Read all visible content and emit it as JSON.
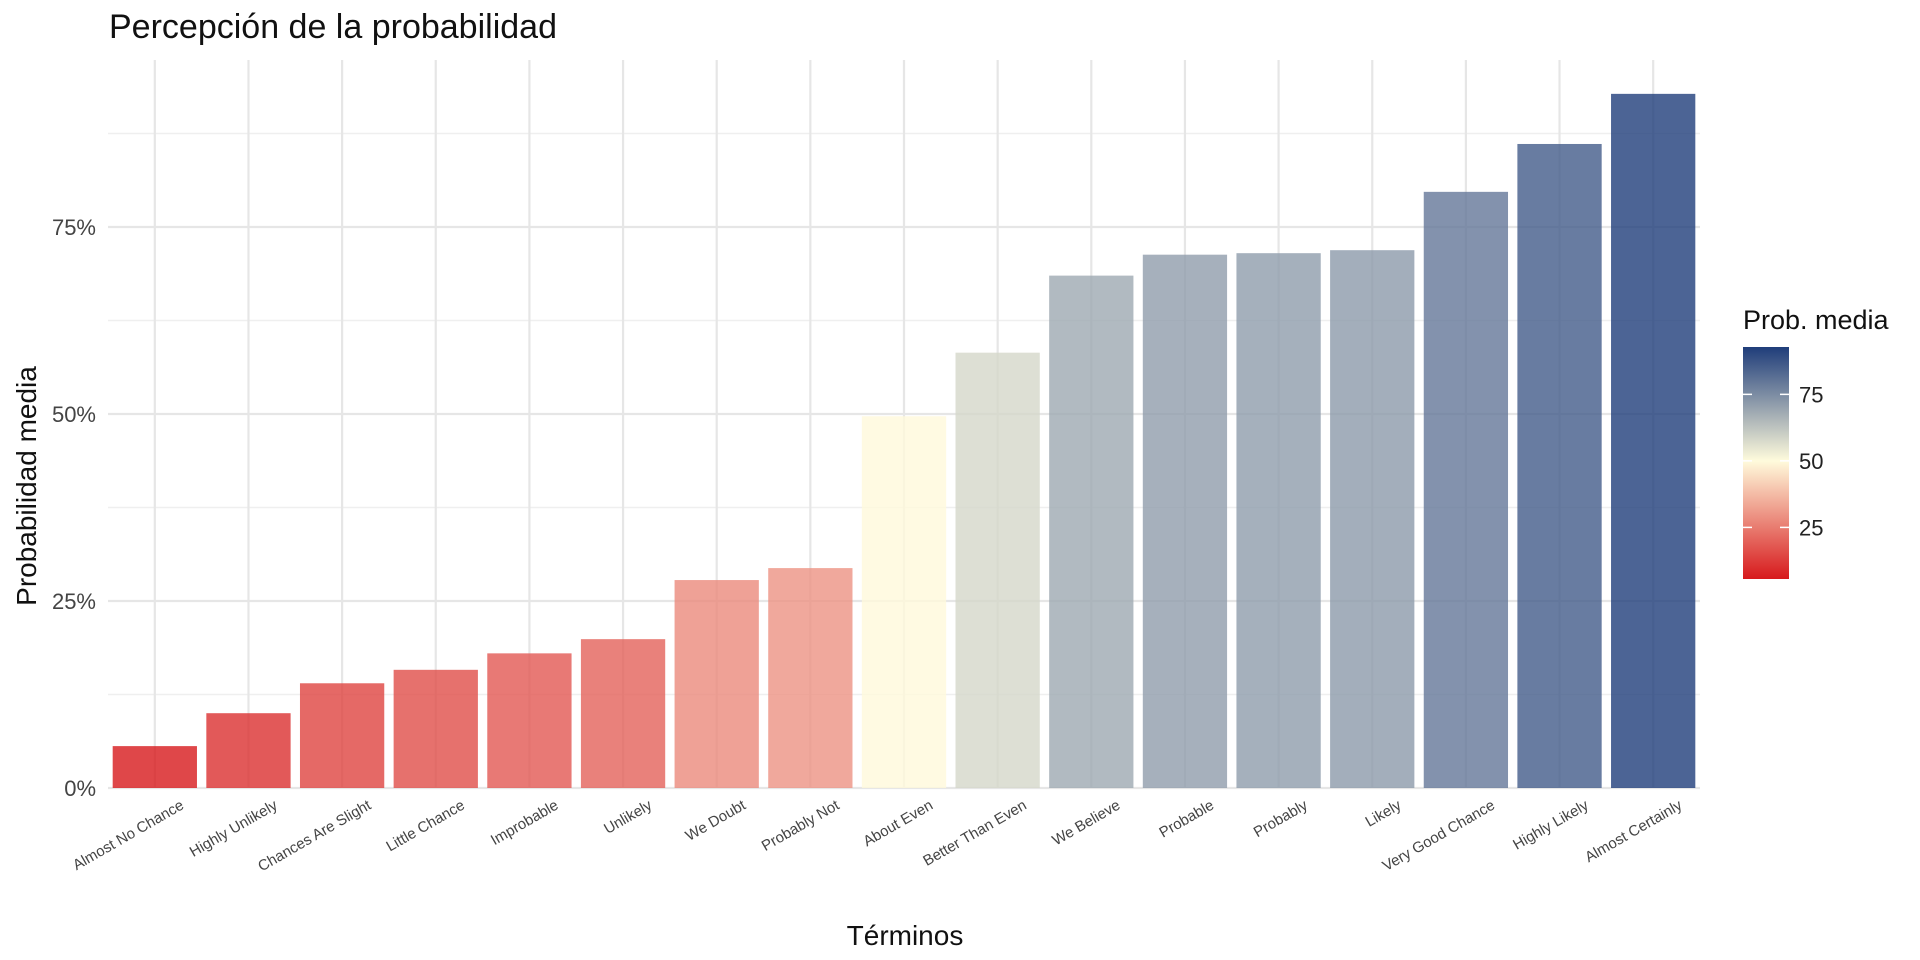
{
  "chart_data": {
    "type": "bar",
    "title": "Percepción de la probabilidad",
    "xlabel": "Términos",
    "ylabel": "Probabilidad media",
    "categories": [
      "Almost No Chance",
      "Highly Unlikely",
      "Chances Are Slight",
      "Little Chance",
      "Improbable",
      "Unlikely",
      "We Doubt",
      "Probably Not",
      "About Even",
      "Better Than Even",
      "We Believe",
      "Probable",
      "Probably",
      "Likely",
      "Very Good Chance",
      "Highly Likely",
      "Almost Certainly"
    ],
    "values": [
      5.6,
      10.0,
      14.0,
      15.8,
      18.0,
      19.9,
      27.8,
      29.4,
      49.7,
      58.2,
      68.5,
      71.3,
      71.5,
      71.9,
      79.7,
      86.1,
      92.8
    ],
    "ylim": [
      0,
      100
    ],
    "yticks": [
      0,
      25,
      50,
      75
    ],
    "ytick_labels": [
      "0%",
      "25%",
      "50%",
      "75%"
    ],
    "grid": true,
    "legend": {
      "title": "Prob. media",
      "position": "right",
      "range": [
        5.6,
        92.8
      ],
      "ticks": [
        25,
        50,
        75
      ],
      "tick_labels": [
        "25",
        "50",
        "75"
      ]
    },
    "colors": {
      "low": "#d7191c",
      "mid": "#fffbdc",
      "high": "#1f3d7a",
      "midpoint": 50
    }
  }
}
